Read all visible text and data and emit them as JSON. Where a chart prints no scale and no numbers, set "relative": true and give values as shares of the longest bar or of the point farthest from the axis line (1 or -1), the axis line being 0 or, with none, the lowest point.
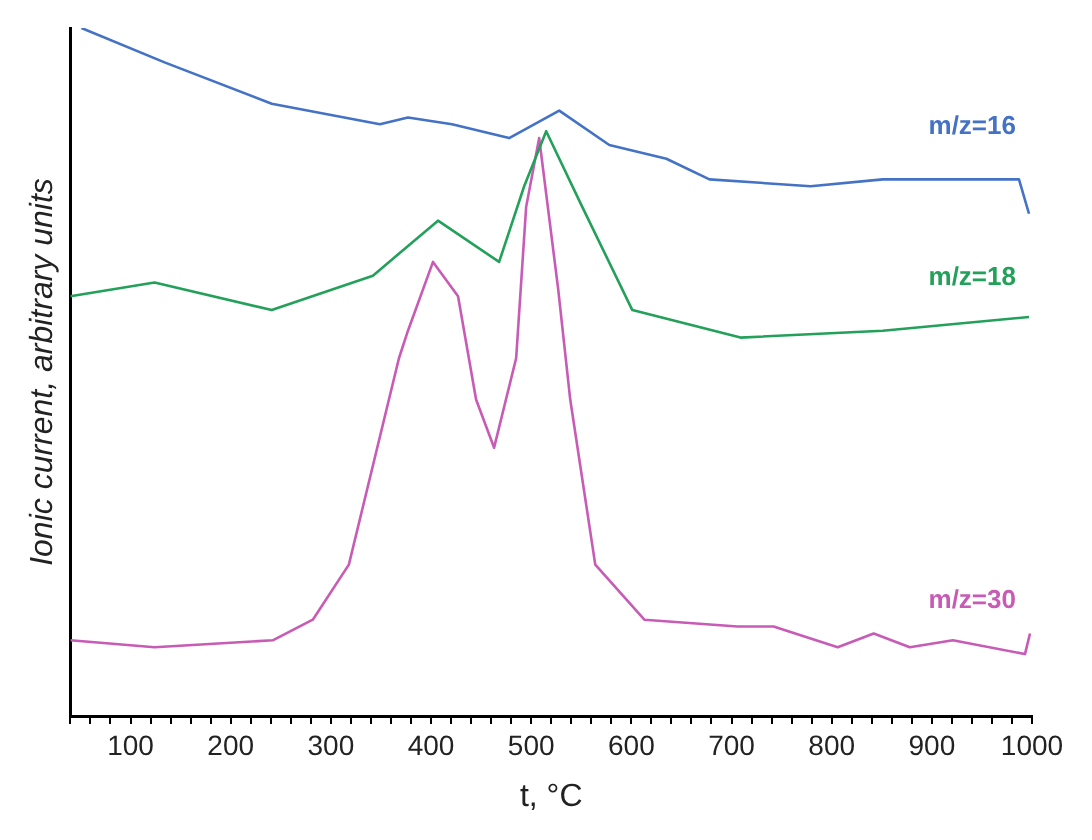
{
  "chart_data": {
    "type": "line",
    "relative": true,
    "xlabel": "t, °C",
    "ylabel": "Ionic current, arbitrary units",
    "xlim": [
      40,
      1000
    ],
    "xticks": [
      {
        "value": 40,
        "label": null
      },
      {
        "value": 60,
        "label": null
      },
      {
        "value": 80,
        "label": null
      },
      100,
      {
        "value": 120,
        "label": null
      },
      {
        "value": 140,
        "label": null
      },
      {
        "value": 160,
        "label": null
      },
      {
        "value": 180,
        "label": null
      },
      200,
      {
        "value": 220,
        "label": null
      },
      {
        "value": 240,
        "label": null
      },
      {
        "value": 260,
        "label": null
      },
      {
        "value": 280,
        "label": null
      },
      300,
      {
        "value": 320,
        "label": null
      },
      {
        "value": 340,
        "label": null
      },
      {
        "value": 360,
        "label": null
      },
      {
        "value": 380,
        "label": null
      },
      400,
      {
        "value": 420,
        "label": null
      },
      {
        "value": 440,
        "label": null
      },
      {
        "value": 460,
        "label": null
      },
      {
        "value": 480,
        "label": null
      },
      500,
      {
        "value": 520,
        "label": null
      },
      {
        "value": 540,
        "label": null
      },
      {
        "value": 560,
        "label": null
      },
      {
        "value": 580,
        "label": null
      },
      600,
      {
        "value": 620,
        "label": null
      },
      {
        "value": 640,
        "label": null
      },
      {
        "value": 660,
        "label": null
      },
      {
        "value": 680,
        "label": null
      },
      700,
      {
        "value": 720,
        "label": null
      },
      {
        "value": 740,
        "label": null
      },
      {
        "value": 760,
        "label": null
      },
      {
        "value": 780,
        "label": null
      },
      800,
      {
        "value": 820,
        "label": null
      },
      {
        "value": 840,
        "label": null
      },
      {
        "value": 860,
        "label": null
      },
      {
        "value": 880,
        "label": null
      },
      900,
      {
        "value": 920,
        "label": null
      },
      {
        "value": 940,
        "label": null
      },
      {
        "value": 960,
        "label": null
      },
      {
        "value": 980,
        "label": null
      },
      1000
    ],
    "grid": false,
    "legend": false,
    "marker": "none",
    "line_style": "solid",
    "series": [
      {
        "name": "m/z=16",
        "color": "#4472c4",
        "x": [
          51,
          134,
          241,
          349,
          377,
          421,
          478,
          528,
          578,
          635,
          678,
          779,
          851,
          987,
          997
        ],
        "values": [
          1.0,
          0.95,
          0.89,
          0.86,
          0.87,
          0.86,
          0.84,
          0.88,
          0.83,
          0.81,
          0.78,
          0.77,
          0.78,
          0.78,
          0.73
        ]
      },
      {
        "name": "m/z=18",
        "color": "#23a05a",
        "x": [
          40,
          124,
          241,
          342,
          407,
          468,
          493,
          515,
          551,
          601,
          709,
          851,
          997
        ],
        "values": [
          0.61,
          0.63,
          0.59,
          0.64,
          0.72,
          0.66,
          0.77,
          0.85,
          0.74,
          0.59,
          0.55,
          0.56,
          0.58
        ]
      },
      {
        "name": "m/z=30",
        "color": "#c75bb5",
        "x": [
          40,
          124,
          242,
          282,
          318,
          368,
          377,
          402,
          427,
          445,
          463,
          485,
          495,
          508,
          527,
          539,
          564,
          613,
          706,
          742,
          806,
          842,
          878,
          921,
          993,
          998
        ],
        "values": [
          0.11,
          0.1,
          0.11,
          0.14,
          0.22,
          0.52,
          0.56,
          0.66,
          0.61,
          0.46,
          0.39,
          0.52,
          0.74,
          0.84,
          0.62,
          0.46,
          0.22,
          0.14,
          0.13,
          0.13,
          0.1,
          0.12,
          0.1,
          0.11,
          0.09,
          0.12
        ]
      }
    ]
  }
}
